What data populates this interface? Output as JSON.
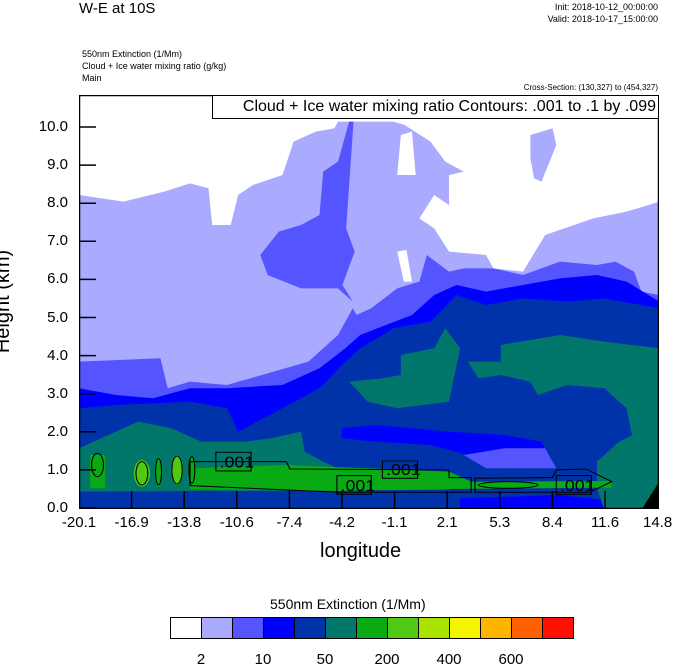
{
  "header": {
    "title": "W-E at 10S",
    "init": "Init: 2018-10-12_00:00:00",
    "valid": "Valid: 2018-10-17_15:00:00",
    "fields": [
      "550nm Extinction   (1/Mm)",
      "Cloud + Ice water mixing ratio   (g/kg)",
      "Main"
    ],
    "cross_section": "Cross-Section: (130,327) to (454,327)"
  },
  "chart_data": {
    "type": "heatmap",
    "title": "W-E at 10S",
    "overlay": "contour",
    "contour_info": "Cloud + Ice water mixing ratio Contours: .001 to .1 by .099",
    "contour_labels": [
      ".001",
      ".001",
      ".001",
      ".001"
    ],
    "xlabel": "longitude",
    "ylabel": "Height (km)",
    "xticks": [
      "-20.1",
      "-16.9",
      "-13.8",
      "-10.6",
      "-7.4",
      "-4.2",
      "-1.1",
      "2.1",
      "5.3",
      "8.4",
      "11.6",
      "14.8"
    ],
    "yticks": [
      "0.0",
      "1.0",
      "2.0",
      "3.0",
      "4.0",
      "5.0",
      "6.0",
      "7.0",
      "8.0",
      "9.0",
      "10.0"
    ],
    "xlim": [
      -20.1,
      14.8
    ],
    "ylim": [
      0,
      10.8
    ],
    "colorbar": {
      "title": "550nm Extinction  (1/Mm)",
      "colors": [
        "#FFFFFF",
        "#AAAAFF",
        "#5555FF",
        "#0000FF",
        "#0033AA",
        "#00776A",
        "#0AAA14",
        "#50C814",
        "#A8E400",
        "#F5F500",
        "#FFB400",
        "#FF6000",
        "#FF1000"
      ],
      "labels": [
        "2",
        "10",
        "50",
        "200",
        "400",
        "600"
      ]
    }
  }
}
